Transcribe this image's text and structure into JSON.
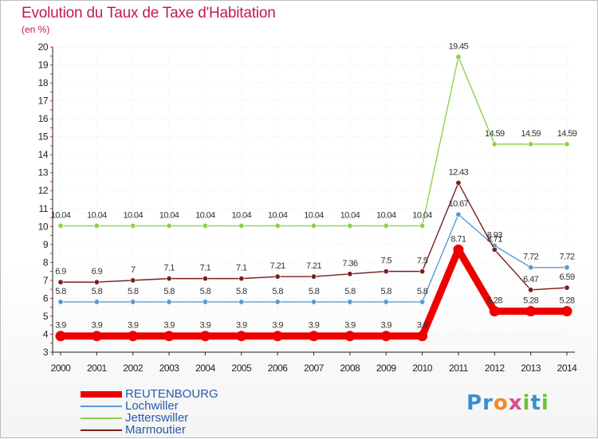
{
  "header": {
    "title": "Evolution du Taux de Taxe d'Habitation",
    "unit": "(en %)"
  },
  "logo": {
    "text": "Proxiti",
    "letters": [
      {
        "ch": "P",
        "color": "#3b8ed0"
      },
      {
        "ch": "r",
        "color": "#3b8ed0"
      },
      {
        "ch": "o",
        "color": "#f08a24"
      },
      {
        "ch": "x",
        "color": "#e04b8a"
      },
      {
        "ch": "i",
        "color": "#6fbf3a"
      },
      {
        "ch": "t",
        "color": "#3b8ed0"
      },
      {
        "ch": "i",
        "color": "#6fbf3a"
      }
    ]
  },
  "chart_data": {
    "type": "line",
    "title": "Evolution du Taux de Taxe d'Habitation",
    "ylabel": "(en %)",
    "xlabel": "",
    "ylim": [
      3,
      20
    ],
    "yticks": [
      3,
      4,
      5,
      6,
      7,
      8,
      9,
      10,
      11,
      12,
      13,
      14,
      15,
      16,
      17,
      18,
      19,
      20
    ],
    "x": [
      "2000",
      "2001",
      "2002",
      "2003",
      "2004",
      "2005",
      "2006",
      "2007",
      "2008",
      "2009",
      "2010",
      "2011",
      "2012",
      "2013",
      "2014"
    ],
    "legend_position": "bottom-left",
    "series": [
      {
        "name": "REUTENBOURG",
        "color": "#ee0000",
        "values": [
          3.9,
          3.9,
          3.9,
          3.9,
          3.9,
          3.9,
          3.9,
          3.9,
          3.9,
          3.9,
          3.9,
          8.71,
          5.28,
          5.28,
          5.28
        ],
        "labels": [
          "3.9",
          "3.9",
          "3.9",
          "3.9",
          "3.9",
          "3.9",
          "3.9",
          "3.9",
          "3.9",
          "3.9",
          "3.9",
          "8.71",
          "5.28",
          "5.28",
          "5.28"
        ]
      },
      {
        "name": "Lochwiller",
        "color": "#5a9bd1",
        "values": [
          5.8,
          5.8,
          5.8,
          5.8,
          5.8,
          5.8,
          5.8,
          5.8,
          5.8,
          5.8,
          5.8,
          10.67,
          8.93,
          7.72,
          7.72
        ],
        "labels": [
          "5.8",
          "5.8",
          "5.8",
          "5.8",
          "5.8",
          "5.8",
          "5.8",
          "5.8",
          "5.8",
          "5.8",
          "5.8",
          "10.67",
          "8.93",
          "7.72",
          "7.72"
        ]
      },
      {
        "name": "Jetterswiller",
        "color": "#8fd24a",
        "values": [
          10.04,
          10.04,
          10.04,
          10.04,
          10.04,
          10.04,
          10.04,
          10.04,
          10.04,
          10.04,
          10.04,
          19.45,
          14.59,
          14.59,
          14.59
        ],
        "labels": [
          "10.04",
          "10.04",
          "10.04",
          "10.04",
          "10.04",
          "10.04",
          "10.04",
          "10.04",
          "10.04",
          "10.04",
          "10.04",
          "19.45",
          "14.59",
          "14.59",
          "14.59"
        ]
      },
      {
        "name": "Marmoutier",
        "color": "#7b1e1e",
        "values": [
          6.9,
          6.9,
          7,
          7.1,
          7.1,
          7.1,
          7.21,
          7.21,
          7.36,
          7.5,
          7.5,
          12.43,
          8.71,
          6.47,
          6.59
        ],
        "labels": [
          "6.9",
          "6.9",
          "7",
          "7.1",
          "7.1",
          "7.1",
          "7.21",
          "7.21",
          "7.36",
          "7.5",
          "7.5",
          "12.43",
          "8.71",
          "6.47",
          "6.59"
        ]
      }
    ]
  }
}
